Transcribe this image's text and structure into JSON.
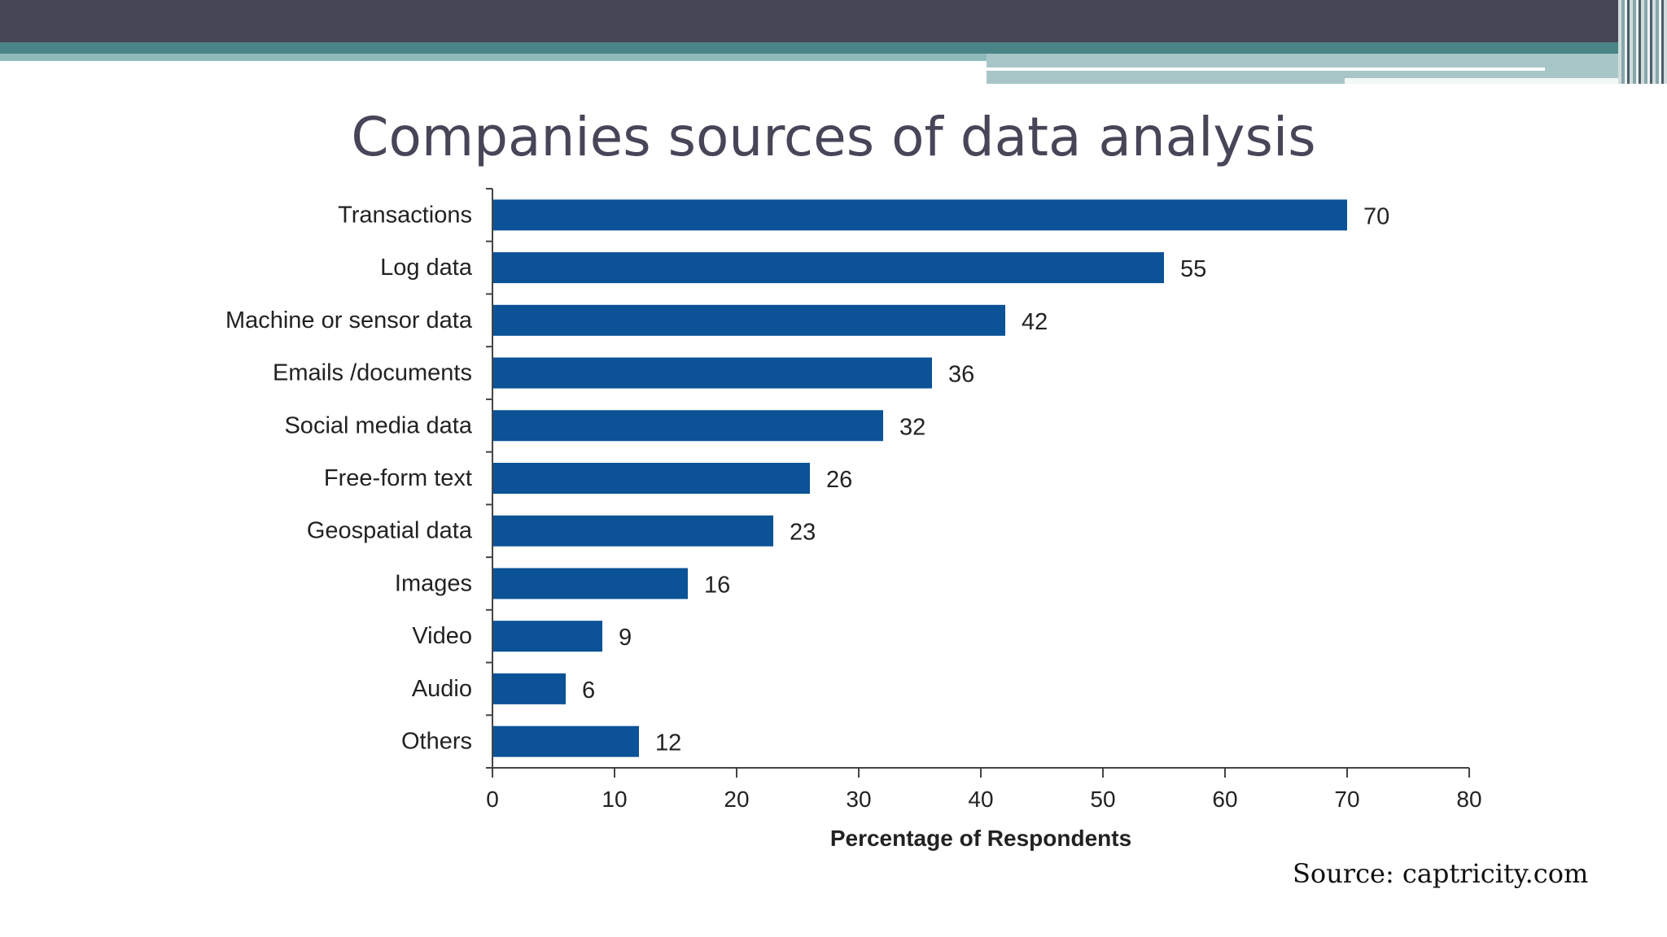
{
  "slide": {
    "title": "Companies sources of data analysis",
    "source": "Source: captricity.com"
  },
  "colors": {
    "bar": "#0b5297",
    "axis": "#444444",
    "text": "#222222",
    "title": "#474658"
  },
  "chart_data": {
    "type": "bar",
    "orientation": "horizontal",
    "title": "Companies sources of data analysis",
    "categories": [
      "Transactions",
      "Log data",
      "Machine or sensor data",
      "Emails /documents",
      "Social media data",
      "Free-form text",
      "Geospatial data",
      "Images",
      "Video",
      "Audio",
      "Others"
    ],
    "values": [
      70,
      55,
      42,
      36,
      32,
      26,
      23,
      16,
      9,
      6,
      12
    ],
    "xlabel": "Percentage of Respondents",
    "ylabel": "",
    "xlim": [
      0,
      80
    ],
    "xticks": [
      0,
      10,
      20,
      30,
      40,
      50,
      60,
      70,
      80
    ],
    "grid": false,
    "data_labels": true
  }
}
